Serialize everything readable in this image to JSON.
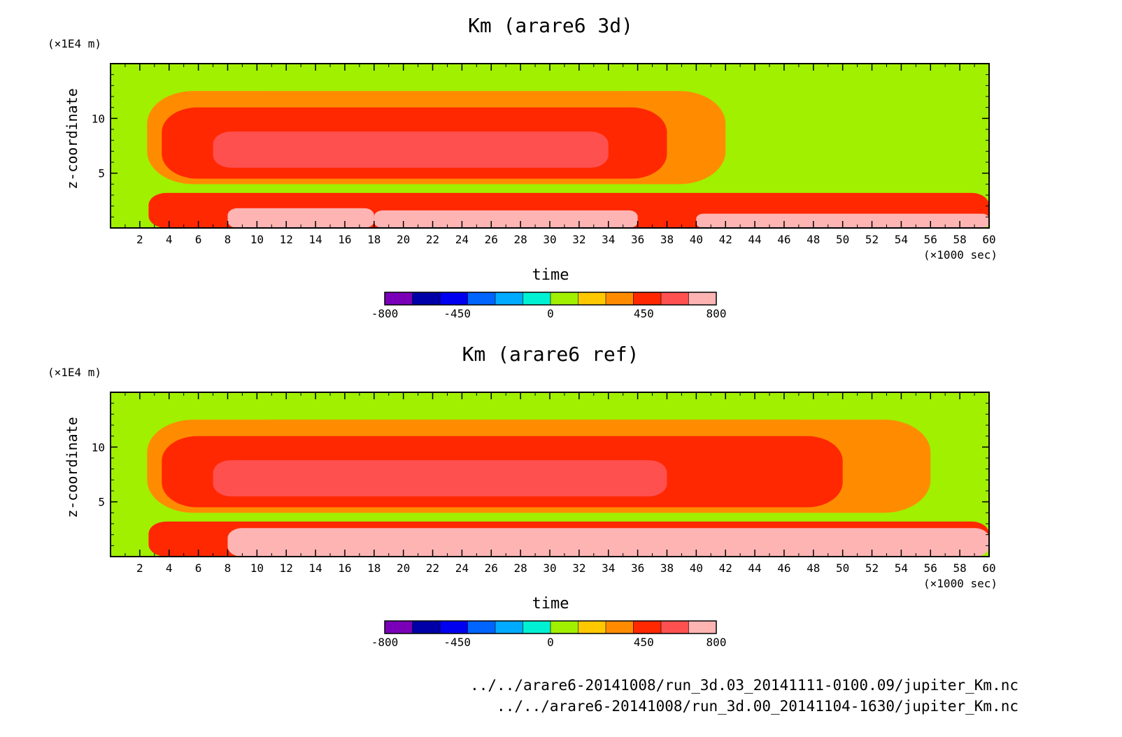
{
  "chart_data": [
    {
      "type": "heatmap",
      "title": "Km (arare6 3d)",
      "xlabel": "time",
      "x_unit": "(×1000 sec)",
      "ylabel": "z-coordinate",
      "y_unit": "(×1E4 m)",
      "xlim": [
        0,
        60
      ],
      "ylim": [
        0,
        15
      ],
      "x_ticks": [
        "2",
        "4",
        "6",
        "8",
        "10",
        "12",
        "14",
        "16",
        "18",
        "20",
        "22",
        "24",
        "26",
        "28",
        "30",
        "32",
        "34",
        "36",
        "38",
        "40",
        "42",
        "44",
        "46",
        "48",
        "50",
        "52",
        "54",
        "56",
        "58",
        "60"
      ],
      "y_ticks": [
        "5",
        "10"
      ],
      "colorbar": {
        "min": -800,
        "max": 800,
        "tick_labels": [
          "-800",
          "-450",
          "0",
          "450",
          "800"
        ],
        "colors": [
          "#7a00b8",
          "#0000a8",
          "#0000f0",
          "#0064ff",
          "#00aaff",
          "#00f0d2",
          "#a0f000",
          "#ffc800",
          "#ff8c00",
          "#ff2800",
          "#ff5050",
          "#ffb4b4"
        ]
      },
      "regions": [
        {
          "level": 450,
          "x": [
            2.6,
            60
          ],
          "y": [
            0,
            3.2
          ]
        },
        {
          "level": 800,
          "x": [
            8,
            18
          ],
          "y": [
            0,
            1.8
          ]
        },
        {
          "level": 800,
          "x": [
            18,
            36
          ],
          "y": [
            0,
            1.6
          ]
        },
        {
          "level": 800,
          "x": [
            40,
            60
          ],
          "y": [
            0,
            1.3
          ]
        },
        {
          "level": 300,
          "x": [
            2.5,
            42
          ],
          "y": [
            4,
            12.5
          ]
        },
        {
          "level": 450,
          "x": [
            3.5,
            38
          ],
          "y": [
            4.5,
            11
          ]
        },
        {
          "level": 600,
          "x": [
            7,
            34
          ],
          "y": [
            5.5,
            8.8
          ]
        }
      ]
    },
    {
      "type": "heatmap",
      "title": "Km (arare6 ref)",
      "xlabel": "time",
      "x_unit": "(×1000 sec)",
      "ylabel": "z-coordinate",
      "y_unit": "(×1E4 m)",
      "xlim": [
        0,
        60
      ],
      "ylim": [
        0,
        15
      ],
      "x_ticks": [
        "2",
        "4",
        "6",
        "8",
        "10",
        "12",
        "14",
        "16",
        "18",
        "20",
        "22",
        "24",
        "26",
        "28",
        "30",
        "32",
        "34",
        "36",
        "38",
        "40",
        "42",
        "44",
        "46",
        "48",
        "50",
        "52",
        "54",
        "56",
        "58",
        "60"
      ],
      "y_ticks": [
        "5",
        "10"
      ],
      "colorbar": {
        "min": -800,
        "max": 800,
        "tick_labels": [
          "-800",
          "-450",
          "0",
          "450",
          "800"
        ],
        "colors": [
          "#7a00b8",
          "#0000a8",
          "#0000f0",
          "#0064ff",
          "#00aaff",
          "#00f0d2",
          "#a0f000",
          "#ffc800",
          "#ff8c00",
          "#ff2800",
          "#ff5050",
          "#ffb4b4"
        ]
      },
      "regions": [
        {
          "level": 450,
          "x": [
            2.6,
            60
          ],
          "y": [
            0,
            3.2
          ]
        },
        {
          "level": 800,
          "x": [
            8,
            60
          ],
          "y": [
            0,
            2.6
          ]
        },
        {
          "level": 300,
          "x": [
            2.5,
            56
          ],
          "y": [
            4,
            12.5
          ]
        },
        {
          "level": 450,
          "x": [
            3.5,
            50
          ],
          "y": [
            4.5,
            11
          ]
        },
        {
          "level": 600,
          "x": [
            7,
            38
          ],
          "y": [
            5.5,
            8.8
          ]
        }
      ]
    }
  ],
  "footer": {
    "path_1": "../../arare6-20141008/run_3d.03_20141111-0100.09/jupiter_Km.nc",
    "path_2": "../../arare6-20141008/run_3d.00_20141104-1630/jupiter_Km.nc"
  }
}
